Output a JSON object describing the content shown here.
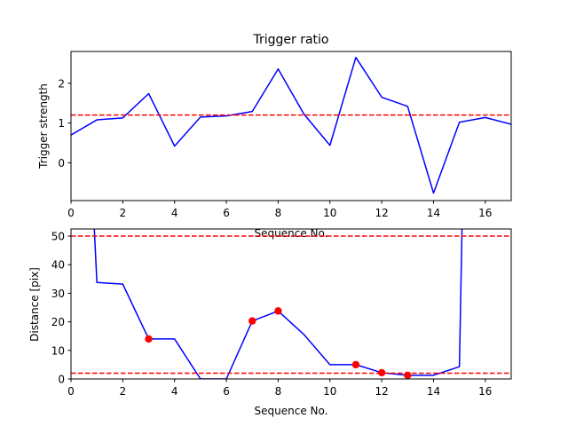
{
  "chart_data": [
    {
      "type": "line",
      "title": "Trigger ratio",
      "xlabel": "Sequence No.",
      "ylabel": "Trigger strength",
      "xlim": [
        0,
        17
      ],
      "ylim": [
        -0.95,
        2.8
      ],
      "xticks": [
        "0",
        "2",
        "4",
        "6",
        "8",
        "10",
        "12",
        "14",
        "16"
      ],
      "yticks": [
        "0",
        "1",
        "2"
      ],
      "grid": false,
      "series": [
        {
          "color": "#0000ff",
          "x": [
            0,
            1,
            2,
            3,
            4,
            5,
            6,
            7,
            8,
            9,
            10,
            11,
            12,
            13,
            14,
            15,
            16,
            17
          ],
          "values": [
            0.7,
            1.08,
            1.13,
            1.74,
            0.42,
            1.15,
            1.18,
            1.29,
            2.36,
            1.22,
            0.44,
            2.65,
            1.65,
            1.42,
            -0.76,
            1.02,
            1.14,
            0.97
          ]
        }
      ],
      "reference_lines": [
        {
          "y": 1.2,
          "color": "#ff0000",
          "style": "dashed"
        }
      ]
    },
    {
      "type": "line",
      "title": "",
      "xlabel": "Sequence No.",
      "ylabel": "Distance [pix]",
      "xlim": [
        0,
        17
      ],
      "ylim": [
        0,
        52.5
      ],
      "xticks": [
        "0",
        "2",
        "4",
        "6",
        "8",
        "10",
        "12",
        "14",
        "16"
      ],
      "yticks": [
        "0",
        "10",
        "20",
        "30",
        "40",
        "50"
      ],
      "grid": false,
      "series": [
        {
          "color": "#0000ff",
          "x": [
            0.9,
            1,
            2,
            3,
            4,
            5,
            6,
            7,
            8,
            9,
            10,
            11,
            12,
            13,
            14,
            15,
            15.1
          ],
          "values": [
            52.5,
            33.8,
            33.2,
            14,
            14,
            0,
            0,
            20.3,
            23.8,
            15.5,
            5,
            5,
            2.2,
            1.3,
            1.3,
            4.3,
            52.5
          ]
        }
      ],
      "markers": {
        "color": "#ff0000",
        "x": [
          3,
          7,
          8,
          11,
          12,
          13
        ],
        "values": [
          14,
          20.3,
          23.8,
          5,
          2.2,
          1.3
        ]
      },
      "reference_lines": [
        {
          "y": 50,
          "color": "#ff0000",
          "style": "dashed"
        },
        {
          "y": 2,
          "color": "#ff0000",
          "style": "dashed"
        }
      ]
    }
  ]
}
